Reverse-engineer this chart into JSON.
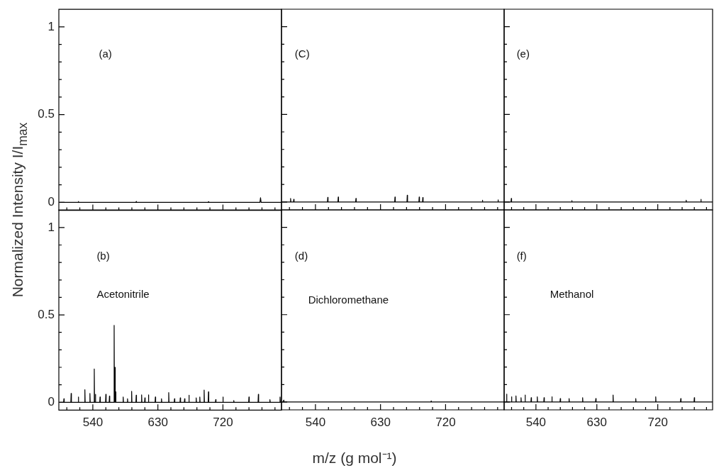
{
  "chart_data": [
    {
      "type": "line",
      "ylabel": "Normalized Intensity I/I$_{max}$",
      "annotations": [
        "(a)"
      ],
      "xlim": [
        493,
        801
      ],
      "ylim": [
        -0.045,
        1.1
      ],
      "tick_labels": "y",
      "xticks": [
        {
          "value": 504,
          "label": null
        },
        {
          "value": 522,
          "label": null
        },
        540,
        {
          "value": 558,
          "label": null
        },
        {
          "value": 576,
          "label": null
        },
        {
          "value": 594,
          "label": null
        },
        {
          "value": 612,
          "label": null
        },
        630,
        {
          "value": 648,
          "label": null
        },
        {
          "value": 666,
          "label": null
        },
        {
          "value": 684,
          "label": null
        },
        {
          "value": 702,
          "label": null
        },
        720,
        {
          "value": 738,
          "label": null
        },
        {
          "value": 756,
          "label": null
        },
        {
          "value": 774,
          "label": null
        },
        {
          "value": 792,
          "label": null
        }
      ],
      "yticks": [
        0,
        {
          "value": 0.1,
          "label": null
        },
        {
          "value": 0.2,
          "label": null
        },
        {
          "value": 0.3,
          "label": null
        },
        {
          "value": 0.4,
          "label": null
        },
        0.5,
        {
          "value": 0.6,
          "label": null
        },
        {
          "value": 0.7,
          "label": null
        },
        {
          "value": 0.8,
          "label": null
        },
        {
          "value": 0.9,
          "label": null
        },
        1
      ],
      "series": [
        {
          "color": "#000000",
          "x": [
            494,
            519.6,
            520,
            520.4,
            599.6,
            600,
            600.4,
            699.6,
            700,
            700.4,
            771.2,
            772,
            772.8,
            801
          ],
          "values": [
            0,
            0,
            0.005,
            0,
            0,
            0.005,
            0,
            0,
            0.004,
            0,
            0,
            0.027,
            0,
            0
          ]
        }
      ]
    },
    {
      "type": "line",
      "annotations": [
        "(C)"
      ],
      "xlim": [
        493,
        801
      ],
      "ylim": [
        -0.045,
        1.1
      ],
      "tick_labels": false,
      "xticks": [
        {
          "value": 504,
          "label": null
        },
        {
          "value": 522,
          "label": null
        },
        540,
        {
          "value": 558,
          "label": null
        },
        {
          "value": 576,
          "label": null
        },
        {
          "value": 594,
          "label": null
        },
        {
          "value": 612,
          "label": null
        },
        630,
        {
          "value": 648,
          "label": null
        },
        {
          "value": 666,
          "label": null
        },
        {
          "value": 684,
          "label": null
        },
        {
          "value": 702,
          "label": null
        },
        720,
        {
          "value": 738,
          "label": null
        },
        {
          "value": 756,
          "label": null
        },
        {
          "value": 774,
          "label": null
        },
        {
          "value": 792,
          "label": null
        }
      ],
      "yticks": [
        0,
        {
          "value": 0.1,
          "label": null
        },
        {
          "value": 0.2,
          "label": null
        },
        {
          "value": 0.3,
          "label": null
        },
        {
          "value": 0.4,
          "label": null
        },
        0.5,
        {
          "value": 0.6,
          "label": null
        },
        {
          "value": 0.7,
          "label": null
        },
        {
          "value": 0.8,
          "label": null
        },
        {
          "value": 0.9,
          "label": null
        },
        1
      ],
      "series": [
        {
          "color": "#000000",
          "x": [
            494,
            505.2,
            505.6,
            506,
            509.6,
            510,
            510.4,
            556.6,
            557,
            557.4,
            571.1,
            571.5,
            571.9,
            595.6,
            596,
            596.4,
            649.6,
            650,
            650.4,
            666.6,
            667,
            667.4,
            683.1,
            683.5,
            683.9,
            688.1,
            688.5,
            688.9,
            770.6,
            771,
            771.4,
            792.2,
            792.6,
            793,
            801
          ],
          "values": [
            0,
            0,
            0.02,
            0,
            0,
            0.015,
            0,
            0,
            0.026,
            0,
            0,
            0.028,
            0,
            0,
            0.02,
            0,
            0,
            0.028,
            0,
            0,
            0.039,
            0,
            0,
            0.028,
            0,
            0,
            0.025,
            0,
            0,
            0.01,
            0,
            0,
            0.012,
            0,
            0
          ]
        }
      ]
    },
    {
      "type": "line",
      "annotations": [
        "(e)"
      ],
      "xlim": [
        493,
        801
      ],
      "ylim": [
        -0.045,
        1.1
      ],
      "tick_labels": false,
      "xticks": [
        {
          "value": 504,
          "label": null
        },
        {
          "value": 522,
          "label": null
        },
        540,
        {
          "value": 558,
          "label": null
        },
        {
          "value": 576,
          "label": null
        },
        {
          "value": 594,
          "label": null
        },
        {
          "value": 612,
          "label": null
        },
        630,
        {
          "value": 648,
          "label": null
        },
        {
          "value": 666,
          "label": null
        },
        {
          "value": 684,
          "label": null
        },
        {
          "value": 702,
          "label": null
        },
        720,
        {
          "value": 738,
          "label": null
        },
        {
          "value": 756,
          "label": null
        },
        {
          "value": 774,
          "label": null
        },
        {
          "value": 792,
          "label": null
        }
      ],
      "yticks": [
        0,
        {
          "value": 0.1,
          "label": null
        },
        {
          "value": 0.2,
          "label": null
        },
        {
          "value": 0.3,
          "label": null
        },
        {
          "value": 0.4,
          "label": null
        },
        0.5,
        {
          "value": 0.6,
          "label": null
        },
        {
          "value": 0.7,
          "label": null
        },
        {
          "value": 0.8,
          "label": null
        },
        {
          "value": 0.9,
          "label": null
        },
        1
      ],
      "series": [
        {
          "color": "#000000",
          "x": [
            494,
            503.2,
            503.6,
            504,
            592.6,
            593,
            593.4,
            761.6,
            762,
            762.4,
            783.4,
            783.8,
            784.2,
            801
          ],
          "values": [
            0,
            0,
            0.02,
            0,
            0,
            0.008,
            0,
            0,
            0.01,
            0,
            0,
            0.015,
            0,
            0
          ]
        }
      ]
    },
    {
      "type": "line",
      "annotations": [
        "(b)",
        "Acetonitrile"
      ],
      "xlim": [
        493,
        801
      ],
      "ylim": [
        -0.045,
        1.1
      ],
      "xticks": [
        {
          "value": 504,
          "label": null
        },
        {
          "value": 522,
          "label": null
        },
        540,
        {
          "value": 558,
          "label": null
        },
        {
          "value": 576,
          "label": null
        },
        {
          "value": 594,
          "label": null
        },
        {
          "value": 612,
          "label": null
        },
        630,
        {
          "value": 648,
          "label": null
        },
        {
          "value": 666,
          "label": null
        },
        {
          "value": 684,
          "label": null
        },
        {
          "value": 702,
          "label": null
        },
        720,
        {
          "value": 738,
          "label": null
        },
        {
          "value": 756,
          "label": null
        },
        {
          "value": 774,
          "label": null
        },
        {
          "value": 792,
          "label": null
        }
      ],
      "yticks": [
        0,
        {
          "value": 0.1,
          "label": null
        },
        {
          "value": 0.2,
          "label": null
        },
        {
          "value": 0.3,
          "label": null
        },
        {
          "value": 0.4,
          "label": null
        },
        0.5,
        {
          "value": 0.6,
          "label": null
        },
        {
          "value": 0.7,
          "label": null
        },
        {
          "value": 0.8,
          "label": null
        },
        {
          "value": 0.9,
          "label": null
        },
        1
      ],
      "series": [
        {
          "color": "#000000",
          "x": [
            494,
            499.6,
            500,
            500.4,
            509.6,
            510,
            510.4,
            519.6,
            520,
            520.4,
            528.6,
            529,
            529.4,
            535.6,
            536,
            536.4,
            541.6,
            542,
            542.4,
            543.2,
            543.6,
            544,
            549.6,
            550,
            550.4,
            557.6,
            558,
            558.4,
            562.6,
            563,
            563.4,
            569.1,
            569.5,
            569.9,
            570.1,
            570.5,
            570.9,
            571.1,
            571.5,
            571.9,
            581.6,
            582,
            582.4,
            587.6,
            588,
            588.4,
            593.3,
            593.7,
            594.1,
            599.6,
            600,
            600.4,
            607.1,
            607.5,
            607.9,
            611.6,
            612,
            612.4,
            616.6,
            617,
            617.4,
            626.1,
            626.5,
            626.9,
            634.6,
            635,
            635.4,
            644.6,
            645,
            645.4,
            652.6,
            653,
            653.4,
            660.6,
            661,
            661.4,
            666.6,
            667,
            667.4,
            672.6,
            673,
            673.4,
            682.6,
            683,
            683.4,
            687.6,
            688,
            688.4,
            693.6,
            694,
            694.4,
            699.6,
            700,
            700.4,
            709.6,
            710,
            710.4,
            719.6,
            720,
            720.4,
            734.6,
            735,
            735.4,
            755.6,
            756,
            756.4,
            768.6,
            769,
            769.4,
            784.6,
            785,
            785.4,
            798.6,
            799,
            799.4,
            801
          ],
          "values": [
            0,
            0,
            0.02,
            0,
            0,
            0.05,
            0,
            0,
            0.03,
            0,
            0,
            0.072,
            0,
            0,
            0.05,
            0,
            0,
            0.19,
            0,
            0,
            0.045,
            0,
            0,
            0.03,
            0,
            0,
            0.045,
            0,
            0,
            0.035,
            0,
            0,
            0.44,
            0,
            0,
            0.2,
            0,
            0,
            0.06,
            0,
            0,
            0.03,
            0,
            0,
            0.02,
            0,
            0,
            0.063,
            0,
            0,
            0.04,
            0,
            0,
            0.042,
            0,
            0,
            0.025,
            0,
            0,
            0.042,
            0,
            0,
            0.03,
            0,
            0,
            0.02,
            0,
            0,
            0.055,
            0,
            0,
            0.02,
            0,
            0,
            0.025,
            0,
            0,
            0.02,
            0,
            0,
            0.04,
            0,
            0,
            0.025,
            0,
            0,
            0.03,
            0,
            0,
            0.07,
            0,
            0,
            0.06,
            0,
            0,
            0.015,
            0,
            0,
            0.03,
            0,
            0,
            0.01,
            0,
            0,
            0.03,
            0,
            0,
            0.045,
            0,
            0,
            0.015,
            0,
            0,
            0.03,
            0,
            0
          ]
        }
      ]
    },
    {
      "type": "line",
      "xlabel": "m/z (g mol⁻¹)",
      "annotations": [
        "(d)",
        "Dichloromethane"
      ],
      "xlim": [
        493,
        801
      ],
      "ylim": [
        -0.045,
        1.1
      ],
      "tick_labels": "x",
      "xticks": [
        {
          "value": 504,
          "label": null
        },
        {
          "value": 522,
          "label": null
        },
        540,
        {
          "value": 558,
          "label": null
        },
        {
          "value": 576,
          "label": null
        },
        {
          "value": 594,
          "label": null
        },
        {
          "value": 612,
          "label": null
        },
        630,
        {
          "value": 648,
          "label": null
        },
        {
          "value": 666,
          "label": null
        },
        {
          "value": 684,
          "label": null
        },
        {
          "value": 702,
          "label": null
        },
        720,
        {
          "value": 738,
          "label": null
        },
        {
          "value": 756,
          "label": null
        },
        {
          "value": 774,
          "label": null
        },
        {
          "value": 792,
          "label": null
        }
      ],
      "yticks": [
        0,
        {
          "value": 0.1,
          "label": null
        },
        {
          "value": 0.2,
          "label": null
        },
        {
          "value": 0.3,
          "label": null
        },
        {
          "value": 0.4,
          "label": null
        },
        0.5,
        {
          "value": 0.6,
          "label": null
        },
        {
          "value": 0.7,
          "label": null
        },
        {
          "value": 0.8,
          "label": null
        },
        {
          "value": 0.9,
          "label": null
        },
        1
      ],
      "series": [
        {
          "color": "#000000",
          "x": [
            494,
            495.6,
            496,
            496.4,
            699.6,
            700,
            700.4,
            801
          ],
          "values": [
            0,
            0,
            0.01,
            0,
            0,
            0.005,
            0,
            0
          ]
        }
      ]
    },
    {
      "type": "line",
      "annotations": [
        "(f)",
        "Methanol"
      ],
      "xlim": [
        493,
        801
      ],
      "ylim": [
        -0.045,
        1.1
      ],
      "tick_labels": "x",
      "xticks": [
        {
          "value": 504,
          "label": null
        },
        {
          "value": 522,
          "label": null
        },
        540,
        {
          "value": 558,
          "label": null
        },
        {
          "value": 576,
          "label": null
        },
        {
          "value": 594,
          "label": null
        },
        {
          "value": 612,
          "label": null
        },
        630,
        {
          "value": 648,
          "label": null
        },
        {
          "value": 666,
          "label": null
        },
        {
          "value": 684,
          "label": null
        },
        {
          "value": 702,
          "label": null
        },
        720,
        {
          "value": 738,
          "label": null
        },
        {
          "value": 756,
          "label": null
        },
        {
          "value": 774,
          "label": null
        },
        {
          "value": 792,
          "label": null
        }
      ],
      "yticks": [
        0,
        {
          "value": 0.1,
          "label": null
        },
        {
          "value": 0.2,
          "label": null
        },
        {
          "value": 0.3,
          "label": null
        },
        {
          "value": 0.4,
          "label": null
        },
        0.5,
        {
          "value": 0.6,
          "label": null
        },
        {
          "value": 0.7,
          "label": null
        },
        {
          "value": 0.8,
          "label": null
        },
        {
          "value": 0.9,
          "label": null
        },
        1
      ],
      "series": [
        {
          "color": "#000000",
          "x": [
            494,
            496.3,
            496.7,
            497.1,
            503.6,
            504,
            504.4,
            510.1,
            510.5,
            510.9,
            517.6,
            518,
            518.4,
            523.6,
            524,
            524.4,
            532.6,
            533,
            533.4,
            541.6,
            542,
            542.4,
            551.6,
            552,
            552.4,
            563.2,
            563.6,
            564,
            575.6,
            576,
            576.4,
            588.6,
            589,
            589.4,
            608.6,
            609,
            609.4,
            628.1,
            628.5,
            628.9,
            653.6,
            654,
            654.4,
            687.1,
            687.5,
            687.9,
            716.6,
            717,
            717.4,
            753.6,
            754,
            754.4,
            773.6,
            774,
            774.4,
            801
          ],
          "values": [
            0,
            0,
            0.045,
            0,
            0,
            0.03,
            0,
            0,
            0.035,
            0,
            0,
            0.025,
            0,
            0,
            0.04,
            0,
            0,
            0.025,
            0,
            0,
            0.03,
            0,
            0,
            0.025,
            0,
            0,
            0.03,
            0,
            0,
            0.02,
            0,
            0,
            0.02,
            0,
            0,
            0.025,
            0,
            0,
            0.02,
            0,
            0,
            0.04,
            0,
            0,
            0.02,
            0,
            0,
            0.03,
            0,
            0,
            0.02,
            0,
            0,
            0.025,
            0,
            0
          ]
        }
      ]
    }
  ]
}
